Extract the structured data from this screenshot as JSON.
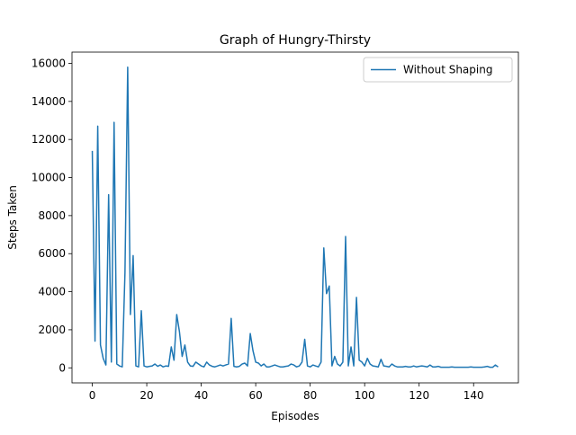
{
  "chart_data": {
    "type": "line",
    "title": "Graph of Hungry-Thirsty",
    "xlabel": "Episodes",
    "ylabel": "Steps Taken",
    "x": [
      0,
      1,
      2,
      3,
      4,
      5,
      6,
      7,
      8,
      9,
      10,
      11,
      12,
      13,
      14,
      15,
      16,
      17,
      18,
      19,
      20,
      21,
      22,
      23,
      24,
      25,
      26,
      27,
      28,
      29,
      30,
      31,
      32,
      33,
      34,
      35,
      36,
      37,
      38,
      39,
      40,
      41,
      42,
      43,
      44,
      45,
      46,
      47,
      48,
      49,
      50,
      51,
      52,
      53,
      54,
      55,
      56,
      57,
      58,
      59,
      60,
      61,
      62,
      63,
      64,
      65,
      66,
      67,
      68,
      69,
      70,
      71,
      72,
      73,
      74,
      75,
      76,
      77,
      78,
      79,
      80,
      81,
      82,
      83,
      84,
      85,
      86,
      87,
      88,
      89,
      90,
      91,
      92,
      93,
      94,
      95,
      96,
      97,
      98,
      99,
      100,
      101,
      102,
      103,
      104,
      105,
      106,
      107,
      108,
      109,
      110,
      111,
      112,
      113,
      114,
      115,
      116,
      117,
      118,
      119,
      120,
      121,
      122,
      123,
      124,
      125,
      126,
      127,
      128,
      129,
      130,
      131,
      132,
      133,
      134,
      135,
      136,
      137,
      138,
      139,
      140,
      141,
      142,
      143,
      144,
      145,
      146,
      147,
      148,
      149
    ],
    "series": [
      {
        "name": "Without Shaping",
        "color": "#1f77b4",
        "values": [
          11400,
          1400,
          12700,
          1200,
          500,
          150,
          9100,
          300,
          12900,
          200,
          100,
          50,
          5000,
          15800,
          2800,
          5900,
          100,
          50,
          3000,
          100,
          50,
          80,
          100,
          200,
          80,
          150,
          50,
          100,
          80,
          1100,
          400,
          2800,
          1900,
          600,
          1200,
          300,
          100,
          80,
          300,
          200,
          100,
          50,
          300,
          150,
          80,
          50,
          100,
          150,
          100,
          150,
          200,
          2600,
          80,
          50,
          80,
          200,
          250,
          100,
          1800,
          900,
          300,
          250,
          100,
          200,
          50,
          50,
          100,
          150,
          100,
          50,
          50,
          80,
          100,
          200,
          150,
          50,
          100,
          300,
          1500,
          100,
          50,
          150,
          100,
          50,
          300,
          6300,
          3900,
          4300,
          100,
          600,
          200,
          100,
          300,
          6900,
          100,
          1100,
          100,
          3700,
          400,
          300,
          100,
          500,
          200,
          100,
          80,
          50,
          450,
          100,
          80,
          50,
          200,
          100,
          50,
          50,
          50,
          80,
          50,
          50,
          100,
          50,
          80,
          100,
          80,
          50,
          150,
          50,
          50,
          80,
          30,
          30,
          30,
          30,
          50,
          30,
          30,
          30,
          30,
          30,
          30,
          50,
          30,
          30,
          30,
          30,
          50,
          80,
          30,
          30,
          150,
          50
        ]
      }
    ],
    "xlim": [
      -7.45,
      156.45
    ],
    "ylim": [
      -790,
      16590
    ],
    "xticks": [
      0,
      20,
      40,
      60,
      80,
      100,
      120,
      140
    ],
    "yticks": [
      0,
      2000,
      4000,
      6000,
      8000,
      10000,
      12000,
      14000,
      16000
    ],
    "legend": "upper right"
  }
}
